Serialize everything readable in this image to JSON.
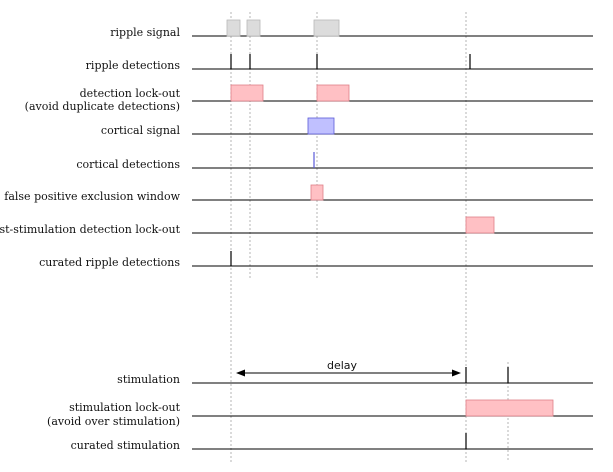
{
  "colors": {
    "axis": "#000000",
    "guide": "#b5b5b5",
    "ripple_fill": "#dcdcdc",
    "ripple_stroke": "#b8b8b8",
    "lockout_fill": "#ffc0c4",
    "lockout_stroke": "#e07f88",
    "cortical_fill": "#c0c0ff",
    "cortical_stroke": "#5a5ad8"
  },
  "rows": {
    "ripple_signal": {
      "label": "ripple signal"
    },
    "ripple_detections": {
      "label": "ripple detections"
    },
    "detection_lockout": {
      "label_line1": "detection lock-out",
      "label_line2": "(avoid duplicate detections)"
    },
    "cortical_signal": {
      "label": "cortical signal"
    },
    "cortical_detections": {
      "label": "cortical detections"
    },
    "false_positive_window": {
      "label": "false positive exclusion window"
    },
    "post_stim_lockout": {
      "label": "post-stimulation detection lock-out"
    },
    "curated_ripple_detections": {
      "label": "curated ripple detections"
    },
    "stimulation": {
      "label": "stimulation"
    },
    "stimulation_lockout": {
      "label_line1": "stimulation lock-out",
      "label_line2": "(avoid over stimulation)"
    },
    "curated_stimulation": {
      "label": "curated stimulation"
    }
  },
  "delay": {
    "label": "delay"
  }
}
